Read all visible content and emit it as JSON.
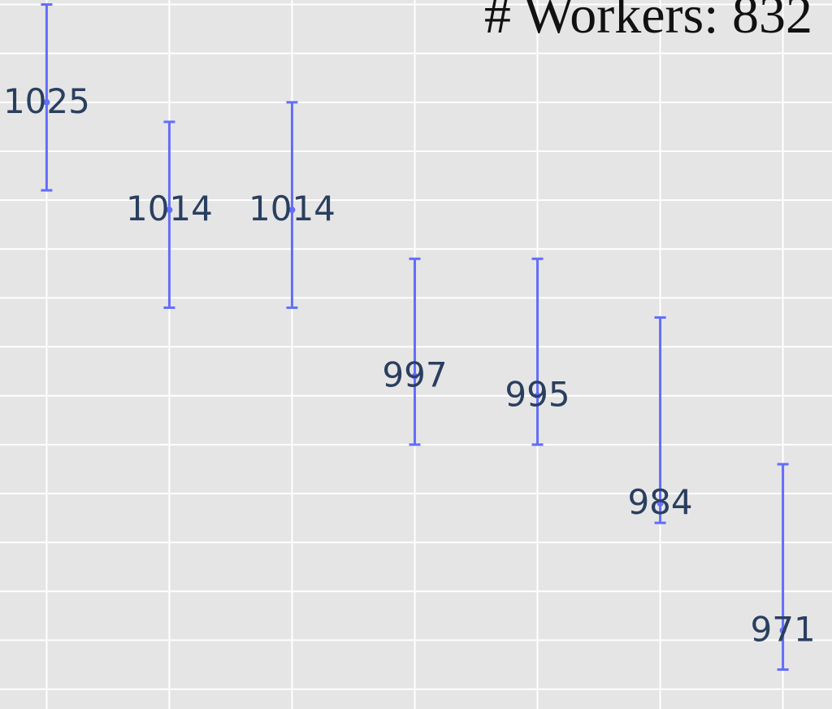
{
  "chart_data": {
    "type": "scatter",
    "title": "# Workers: 832",
    "x": [
      1,
      2,
      3,
      4,
      5,
      6,
      7
    ],
    "series": [
      {
        "values": [
          1025,
          1014,
          1014,
          997,
          995,
          984,
          971
        ],
        "error_upper": [
          1035,
          1023,
          1025,
          1009,
          1009,
          1003,
          988
        ],
        "error_lower": [
          1016,
          1004,
          1004,
          990,
          990,
          982,
          967
        ],
        "labels": [
          "1025",
          "1014",
          "1014",
          "997",
          "995",
          "984",
          "971"
        ],
        "color": "#636efa"
      }
    ],
    "xlim": [
      0.62,
      7.4
    ],
    "ylim": [
      962.97,
      1035.46
    ],
    "grid": true,
    "background": "#e5e5e5",
    "grid_color": "#ffffff",
    "label_color": "#2a3f5f"
  }
}
